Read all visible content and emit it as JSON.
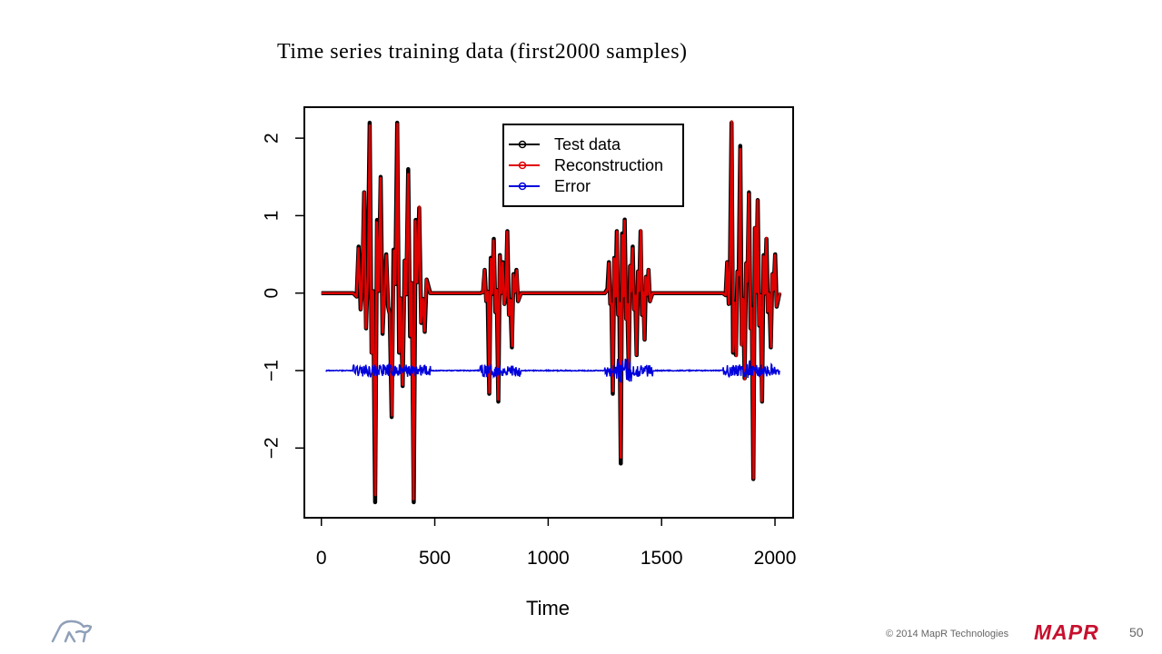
{
  "slide": {
    "page_number": "50",
    "copyright": "© 2014 MapR Technologies",
    "brand": "MAPR",
    "logo_icon": "elephant-logo-icon"
  },
  "chart_data": {
    "type": "line",
    "title": "Time series training data (first2000 samples)",
    "xlabel": "Time",
    "ylabel": "",
    "xlim": [
      -75,
      2080
    ],
    "ylim": [
      -2.9,
      2.4
    ],
    "x_ticks": [
      0,
      500,
      1000,
      1500,
      2000
    ],
    "y_ticks": [
      -2,
      -1,
      0,
      1,
      2
    ],
    "grid": false,
    "legend_position": "top-center",
    "legend": [
      "Test data",
      "Reconstruction",
      "Error"
    ],
    "colors": {
      "test": "#000000",
      "reconstruction": "#e00000",
      "error": "#0000dd"
    },
    "bursts": [
      {
        "start": 140,
        "end": 480,
        "peaks": [
          0.6,
          1.3,
          2.2,
          -2.7,
          1.5,
          0.5,
          -1.6,
          2.2,
          -1.2,
          1.6,
          -2.7,
          1.1,
          -0.5
        ]
      },
      {
        "start": 700,
        "end": 880,
        "peaks": [
          0.3,
          -1.3,
          0.7,
          -1.4,
          0.4,
          0.8,
          -0.7,
          0.3
        ]
      },
      {
        "start": 1250,
        "end": 1460,
        "peaks": [
          0.4,
          -1.3,
          0.8,
          -2.2,
          0.95,
          -1.0,
          0.6,
          -0.8,
          0.8,
          -0.6,
          0.3
        ]
      },
      {
        "start": 1770,
        "end": 2020,
        "peaks": [
          0.4,
          2.2,
          -0.8,
          1.9,
          -1.1,
          1.3,
          -2.4,
          1.2,
          -1.4,
          0.7,
          -0.7,
          0.5
        ]
      }
    ],
    "series": [
      {
        "name": "Test data",
        "baseline": 0
      },
      {
        "name": "Reconstruction",
        "baseline": 0
      },
      {
        "name": "Error",
        "baseline": -1
      }
    ]
  }
}
